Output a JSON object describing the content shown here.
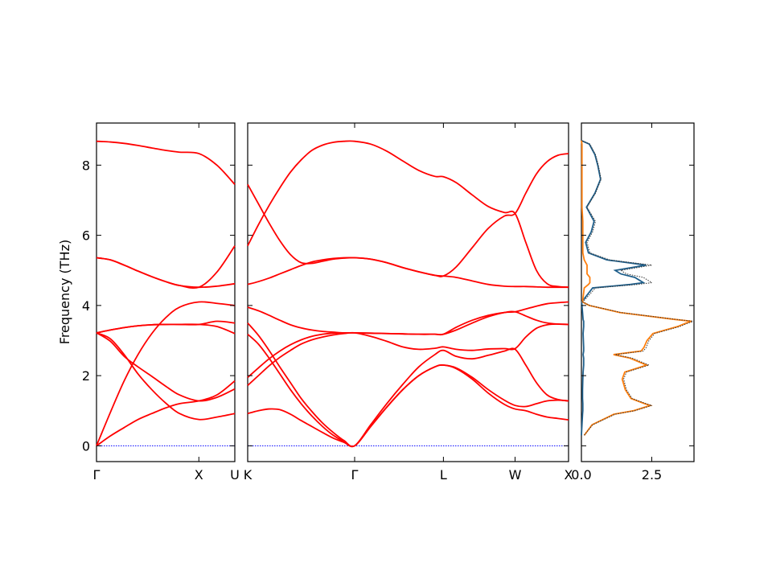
{
  "chart_data": [
    {
      "type": "line",
      "panel": "band-gamma-x-u",
      "ylabel": "Frequency (THz)",
      "ylim": [
        -0.45,
        9.2
      ],
      "yticks": [
        0,
        2,
        4,
        6,
        8
      ],
      "xlim": [
        0,
        1
      ],
      "xticks": [
        {
          "label": "Γ",
          "pos": 0
        },
        {
          "label": "X",
          "pos": 0.74
        },
        {
          "label": "U",
          "pos": 1
        }
      ],
      "band_color": "#ff0000",
      "zero_line_color": "#0000ff",
      "series": [
        {
          "x": [
            0,
            0.1,
            0.2,
            0.3,
            0.4,
            0.5,
            0.6,
            0.74,
            0.87,
            1.0
          ],
          "y": [
            0,
            0.28,
            0.52,
            0.75,
            0.92,
            1.08,
            1.2,
            1.28,
            1.45,
            1.85
          ]
        },
        {
          "x": [
            0,
            0.1,
            0.2,
            0.3,
            0.4,
            0.5,
            0.6,
            0.74,
            0.87,
            1.0
          ],
          "y": [
            0,
            0.95,
            1.85,
            2.6,
            3.2,
            3.65,
            3.95,
            4.1,
            4.06,
            4.0
          ]
        },
        {
          "x": [
            0,
            0.1,
            0.2,
            0.3,
            0.4,
            0.5,
            0.6,
            0.74,
            0.87,
            1.0
          ],
          "y": [
            3.22,
            3.05,
            2.6,
            2.05,
            1.6,
            1.22,
            0.92,
            0.75,
            0.82,
            0.92
          ]
        },
        {
          "x": [
            0,
            0.1,
            0.2,
            0.3,
            0.4,
            0.5,
            0.6,
            0.74,
            0.87,
            1.0
          ],
          "y": [
            3.22,
            2.98,
            2.55,
            2.25,
            1.98,
            1.7,
            1.45,
            1.28,
            1.38,
            1.62
          ]
        },
        {
          "x": [
            0,
            0.1,
            0.2,
            0.3,
            0.4,
            0.5,
            0.6,
            0.74,
            0.87,
            1.0
          ],
          "y": [
            3.22,
            3.3,
            3.37,
            3.42,
            3.45,
            3.46,
            3.46,
            3.46,
            3.4,
            3.2
          ]
        },
        {
          "x": [
            0,
            0.1,
            0.2,
            0.3,
            0.4,
            0.5,
            0.6,
            0.74,
            0.87,
            1.0
          ],
          "y": [
            3.22,
            3.3,
            3.37,
            3.42,
            3.45,
            3.46,
            3.46,
            3.46,
            3.55,
            3.5
          ]
        },
        {
          "x": [
            0,
            0.1,
            0.2,
            0.3,
            0.4,
            0.5,
            0.6,
            0.74,
            0.87,
            1.0
          ],
          "y": [
            5.36,
            5.3,
            5.15,
            4.98,
            4.82,
            4.68,
            4.57,
            4.52,
            4.55,
            4.62
          ]
        },
        {
          "x": [
            0,
            0.1,
            0.2,
            0.3,
            0.4,
            0.5,
            0.6,
            0.74,
            0.87,
            1.0
          ],
          "y": [
            5.36,
            5.3,
            5.15,
            4.98,
            4.82,
            4.68,
            4.57,
            4.52,
            4.95,
            5.7
          ]
        },
        {
          "x": [
            0,
            0.1,
            0.2,
            0.3,
            0.4,
            0.5,
            0.6,
            0.74,
            0.87,
            1.0
          ],
          "y": [
            8.68,
            8.66,
            8.62,
            8.56,
            8.49,
            8.42,
            8.37,
            8.33,
            8.0,
            7.45
          ]
        }
      ]
    },
    {
      "type": "line",
      "panel": "band-k-gamma-l-w-x",
      "ylim": [
        -0.45,
        9.2
      ],
      "xlim": [
        0,
        4
      ],
      "xticks": [
        {
          "label": "K",
          "pos": 0
        },
        {
          "label": "Γ",
          "pos": 1
        },
        {
          "label": "L",
          "pos": 1.83
        },
        {
          "label": "W",
          "pos": 2.5
        },
        {
          "label": "X",
          "pos": 3.0
        }
      ],
      "band_color": "#ff0000",
      "zero_line_color": "#0000ff",
      "series": [
        {
          "x": [
            0,
            0.1,
            0.2,
            0.3,
            0.4,
            0.5,
            0.6,
            0.7,
            0.8,
            0.9,
            1.0,
            1.15,
            1.3,
            1.45,
            1.6,
            1.75,
            1.83,
            1.95,
            2.1,
            2.25,
            2.4,
            2.5,
            2.6,
            2.7,
            2.8,
            2.9,
            3.0
          ],
          "y": [
            0.92,
            1.0,
            1.05,
            1.03,
            0.9,
            0.72,
            0.55,
            0.38,
            0.22,
            0.1,
            0,
            0.55,
            1.1,
            1.6,
            2.0,
            2.25,
            2.3,
            2.2,
            1.9,
            1.5,
            1.18,
            1.05,
            1.0,
            0.9,
            0.82,
            0.78,
            0.74
          ]
        },
        {
          "x": [
            0,
            0.1,
            0.2,
            0.3,
            0.4,
            0.5,
            0.6,
            0.7,
            0.8,
            0.9,
            1.0,
            1.15,
            1.3,
            1.45,
            1.6,
            1.75,
            1.83,
            1.95,
            2.1,
            2.25,
            2.4,
            2.5,
            2.6,
            2.7,
            2.8,
            2.9,
            3.0
          ],
          "y": [
            3.18,
            2.9,
            2.5,
            2.05,
            1.6,
            1.2,
            0.85,
            0.55,
            0.3,
            0.12,
            0,
            0.55,
            1.1,
            1.6,
            2.0,
            2.25,
            2.3,
            2.22,
            1.95,
            1.6,
            1.3,
            1.15,
            1.12,
            1.2,
            1.28,
            1.3,
            1.28
          ]
        },
        {
          "x": [
            0,
            0.1,
            0.2,
            0.3,
            0.4,
            0.5,
            0.6,
            0.7,
            0.8,
            0.9,
            1.0,
            1.15,
            1.3,
            1.45,
            1.6,
            1.75,
            1.83,
            1.95,
            2.1,
            2.25,
            2.4,
            2.5,
            2.6,
            2.7,
            2.8,
            2.9,
            3.0
          ],
          "y": [
            3.5,
            3.15,
            2.72,
            2.25,
            1.8,
            1.35,
            0.98,
            0.65,
            0.38,
            0.15,
            0,
            0.6,
            1.2,
            1.75,
            2.25,
            2.6,
            2.72,
            2.55,
            2.48,
            2.58,
            2.7,
            2.75,
            2.3,
            1.8,
            1.45,
            1.32,
            1.28
          ]
        },
        {
          "x": [
            0,
            0.1,
            0.2,
            0.3,
            0.4,
            0.5,
            0.6,
            0.7,
            0.8,
            0.9,
            1.0,
            1.15,
            1.3,
            1.45,
            1.6,
            1.75,
            1.83,
            1.95,
            2.1,
            2.25,
            2.4,
            2.5,
            2.6,
            2.7,
            2.8,
            2.9,
            3.0
          ],
          "y": [
            1.72,
            2.0,
            2.28,
            2.52,
            2.72,
            2.9,
            3.02,
            3.1,
            3.16,
            3.2,
            3.22,
            3.12,
            2.98,
            2.82,
            2.75,
            2.78,
            2.82,
            2.75,
            2.72,
            2.76,
            2.77,
            2.77,
            3.1,
            3.35,
            3.45,
            3.47,
            3.46
          ]
        },
        {
          "x": [
            0,
            0.1,
            0.2,
            0.3,
            0.4,
            0.5,
            0.6,
            0.7,
            0.8,
            0.9,
            1.0,
            1.15,
            1.3,
            1.45,
            1.6,
            1.75,
            1.83,
            1.95,
            2.1,
            2.25,
            2.4,
            2.5,
            2.6,
            2.7,
            2.8,
            2.9,
            3.0
          ],
          "y": [
            1.95,
            2.22,
            2.48,
            2.7,
            2.88,
            3.02,
            3.12,
            3.18,
            3.21,
            3.22,
            3.22,
            3.21,
            3.2,
            3.19,
            3.18,
            3.18,
            3.18,
            3.3,
            3.5,
            3.68,
            3.8,
            3.82,
            3.7,
            3.58,
            3.5,
            3.47,
            3.46
          ]
        },
        {
          "x": [
            0,
            0.1,
            0.2,
            0.3,
            0.4,
            0.5,
            0.6,
            0.7,
            0.8,
            0.9,
            1.0,
            1.15,
            1.3,
            1.45,
            1.6,
            1.75,
            1.83,
            1.95,
            2.1,
            2.25,
            2.4,
            2.5,
            2.6,
            2.7,
            2.8,
            2.9,
            3.0
          ],
          "y": [
            3.95,
            3.85,
            3.72,
            3.58,
            3.45,
            3.36,
            3.3,
            3.26,
            3.24,
            3.22,
            3.22,
            3.21,
            3.2,
            3.19,
            3.18,
            3.18,
            3.18,
            3.38,
            3.58,
            3.72,
            3.8,
            3.82,
            3.9,
            3.98,
            4.05,
            4.08,
            4.1
          ]
        },
        {
          "x": [
            0,
            0.1,
            0.2,
            0.3,
            0.4,
            0.5,
            0.6,
            0.7,
            0.8,
            0.9,
            1.0,
            1.15,
            1.3,
            1.45,
            1.6,
            1.75,
            1.83,
            1.95,
            2.1,
            2.25,
            2.4,
            2.5,
            2.6,
            2.7,
            2.8,
            2.9,
            3.0
          ],
          "y": [
            4.6,
            4.68,
            4.78,
            4.9,
            5.02,
            5.14,
            5.24,
            5.3,
            5.34,
            5.36,
            5.36,
            5.32,
            5.22,
            5.08,
            4.96,
            4.86,
            4.84,
            4.8,
            4.7,
            4.6,
            4.55,
            4.54,
            4.54,
            4.53,
            4.52,
            4.52,
            4.52
          ]
        },
        {
          "x": [
            0,
            0.1,
            0.2,
            0.3,
            0.4,
            0.5,
            0.6,
            0.7,
            0.8,
            0.9,
            1.0,
            1.15,
            1.3,
            1.45,
            1.6,
            1.75,
            1.83,
            1.95,
            2.1,
            2.25,
            2.4,
            2.5,
            2.6,
            2.7,
            2.8,
            2.9,
            3.0
          ],
          "y": [
            7.45,
            6.9,
            6.35,
            5.85,
            5.45,
            5.22,
            5.2,
            5.26,
            5.32,
            5.35,
            5.36,
            5.32,
            5.22,
            5.08,
            4.96,
            4.86,
            4.84,
            5.1,
            5.65,
            6.2,
            6.55,
            6.62,
            7.2,
            7.75,
            8.1,
            8.28,
            8.33
          ]
        },
        {
          "x": [
            0,
            0.1,
            0.2,
            0.3,
            0.4,
            0.5,
            0.6,
            0.7,
            0.8,
            0.9,
            1.0,
            1.15,
            1.3,
            1.45,
            1.6,
            1.75,
            1.83,
            1.95,
            2.1,
            2.25,
            2.4,
            2.5,
            2.6,
            2.7,
            2.8,
            2.9,
            3.0
          ],
          "y": [
            5.7,
            6.3,
            6.85,
            7.35,
            7.8,
            8.15,
            8.42,
            8.57,
            8.65,
            8.68,
            8.68,
            8.6,
            8.4,
            8.12,
            7.85,
            7.68,
            7.67,
            7.5,
            7.15,
            6.82,
            6.65,
            6.62,
            5.8,
            5.0,
            4.62,
            4.54,
            4.52
          ]
        }
      ]
    },
    {
      "type": "line",
      "panel": "dos",
      "orientation": "horizontal",
      "ylim": [
        -0.45,
        9.2
      ],
      "xlim": [
        0,
        4.0
      ],
      "xticks": [
        {
          "label": "0.0",
          "pos": 0
        },
        {
          "label": "2.5",
          "pos": 2.5
        }
      ],
      "colors": {
        "total": "#333333",
        "series_a": "#1f5f8b",
        "series_b": "#ff7f0e"
      },
      "series": [
        {
          "name": "",
          "role": "total",
          "freq": [
            0.3,
            0.6,
            0.9,
            1.0,
            1.1,
            1.15,
            1.2,
            1.35,
            1.6,
            1.9,
            2.1,
            2.3,
            2.5,
            2.6,
            2.7,
            2.8,
            3.0,
            3.2,
            3.4,
            3.5,
            3.55,
            3.6,
            3.8,
            4.0,
            4.1,
            4.5,
            4.6,
            4.65,
            4.8,
            4.9,
            5.0,
            5.15,
            5.3,
            5.5,
            5.8,
            6.1,
            6.4,
            6.8,
            7.2,
            7.6,
            8.0,
            8.3,
            8.6,
            8.7
          ],
          "dos": [
            0.1,
            0.4,
            1.2,
            1.9,
            2.3,
            2.5,
            2.3,
            1.8,
            1.6,
            1.5,
            1.6,
            2.4,
            1.8,
            1.2,
            2.2,
            2.3,
            2.4,
            2.6,
            3.5,
            3.8,
            4.0,
            3.4,
            1.4,
            0.3,
            0.05,
            0.5,
            2.0,
            2.5,
            2.2,
            1.6,
            1.4,
            2.5,
            1.0,
            0.3,
            0.2,
            0.4,
            0.5,
            0.2,
            0.5,
            0.7,
            0.6,
            0.5,
            0.3,
            0.0
          ]
        },
        {
          "name": "",
          "role": "series_a",
          "freq": [
            0.3,
            0.6,
            0.9,
            1.0,
            1.1,
            1.15,
            1.2,
            1.35,
            1.6,
            1.9,
            2.1,
            2.3,
            2.5,
            2.6,
            2.7,
            2.8,
            3.0,
            3.2,
            3.4,
            3.5,
            3.55,
            3.6,
            3.8,
            4.0,
            4.1,
            4.5,
            4.6,
            4.65,
            4.8,
            4.9,
            5.0,
            5.15,
            5.3,
            5.5,
            5.8,
            6.1,
            6.4,
            6.8,
            7.2,
            7.6,
            8.0,
            8.3,
            8.6,
            8.7
          ],
          "dos": [
            0.0,
            0.02,
            0.04,
            0.05,
            0.05,
            0.05,
            0.05,
            0.04,
            0.04,
            0.05,
            0.06,
            0.08,
            0.08,
            0.06,
            0.08,
            0.08,
            0.07,
            0.06,
            0.08,
            0.08,
            0.08,
            0.06,
            0.04,
            0.02,
            0.01,
            0.4,
            1.75,
            2.2,
            1.9,
            1.4,
            1.2,
            2.3,
            0.9,
            0.25,
            0.15,
            0.35,
            0.45,
            0.18,
            0.48,
            0.68,
            0.58,
            0.48,
            0.28,
            0.0
          ]
        },
        {
          "name": "",
          "role": "series_b",
          "freq": [
            0.3,
            0.6,
            0.9,
            1.0,
            1.1,
            1.15,
            1.2,
            1.35,
            1.6,
            1.9,
            2.1,
            2.3,
            2.5,
            2.6,
            2.7,
            2.8,
            3.0,
            3.2,
            3.4,
            3.5,
            3.55,
            3.6,
            3.8,
            4.0,
            4.1,
            4.5,
            4.6,
            4.65,
            4.8,
            4.9,
            5.0,
            5.15,
            5.3,
            5.5,
            5.8,
            6.1,
            6.4,
            6.8,
            7.2,
            7.6,
            8.0,
            8.3,
            8.6,
            8.7
          ],
          "dos": [
            0.1,
            0.38,
            1.15,
            1.85,
            2.25,
            2.45,
            2.25,
            1.76,
            1.56,
            1.45,
            1.54,
            2.32,
            1.72,
            1.14,
            2.12,
            2.22,
            2.33,
            2.54,
            3.42,
            3.72,
            3.92,
            3.34,
            1.36,
            0.28,
            0.04,
            0.1,
            0.25,
            0.3,
            0.3,
            0.2,
            0.2,
            0.2,
            0.1,
            0.05,
            0.05,
            0.05,
            0.05,
            0.02,
            0.02,
            0.02,
            0.02,
            0.02,
            0.02,
            0.0
          ]
        }
      ]
    }
  ]
}
